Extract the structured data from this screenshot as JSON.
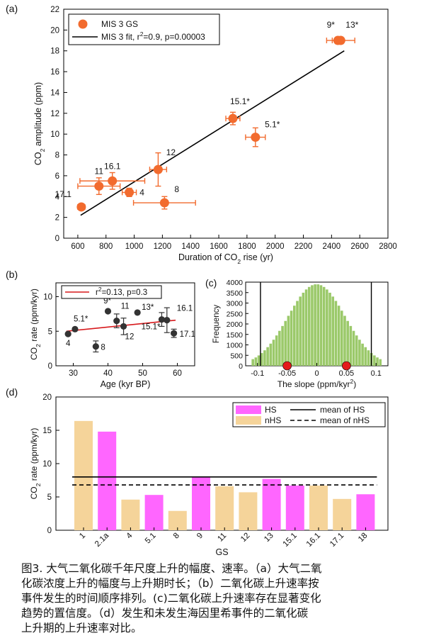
{
  "chart_data": [
    {
      "id": "a",
      "type": "scatter",
      "panel_label": "(a)",
      "xlabel_prefix": "Duration of CO",
      "xlabel_sub": "2",
      "xlabel_suffix": " rise (yr)",
      "ylabel_prefix": "CO",
      "ylabel_sub": "2",
      "ylabel_suffix": " amplitude (ppm)",
      "xlim": [
        500,
        2800
      ],
      "ylim": [
        0,
        22
      ],
      "xticks": [
        600,
        800,
        1000,
        1200,
        1400,
        1600,
        1800,
        2000,
        2200,
        2400,
        2600,
        2800
      ],
      "yticks": [
        0,
        2,
        4,
        6,
        8,
        10,
        12,
        14,
        16,
        18,
        20,
        22
      ],
      "legend": {
        "position": "top-left",
        "marker_label": "MIS 3 GS",
        "line_label_prefix": "MIS 3 fit, r",
        "line_label_sup": "2",
        "line_label_suffix": "=0.9, p=0.00003"
      },
      "colors": {
        "marker": "#f26b2e",
        "errorbar": "#f26b2e",
        "fit": "#000000"
      },
      "points": [
        {
          "label": "17.1",
          "x": 625,
          "y": 3.0,
          "xerr": 25,
          "yerr": 0.3
        },
        {
          "label": "11",
          "x": 750,
          "y": 5.0,
          "xerr": 150,
          "yerr": 0.8
        },
        {
          "label": "16.1",
          "x": 845,
          "y": 5.5,
          "xerr": 230,
          "yerr": 0.8
        },
        {
          "label": "4",
          "x": 965,
          "y": 4.4,
          "xerr": 50,
          "yerr": 0.4
        },
        {
          "label": "12",
          "x": 1170,
          "y": 6.6,
          "xerr": 60,
          "yerr": 1.6
        },
        {
          "label": "8",
          "x": 1215,
          "y": 3.4,
          "xerr": 220,
          "yerr": 0.6
        },
        {
          "label": "15.1*",
          "x": 1700,
          "y": 11.5,
          "xerr": 50,
          "yerr": 0.6
        },
        {
          "label": "5.1*",
          "x": 1860,
          "y": 9.7,
          "xerr": 70,
          "yerr": 0.9
        },
        {
          "label": "9*",
          "x": 2445,
          "y": 19.0,
          "xerr": 40,
          "yerr": 0.3
        },
        {
          "label": "13*",
          "x": 2465,
          "y": 19.0,
          "xerr": 100,
          "yerr": 0.3
        }
      ],
      "fit_line": {
        "x": [
          620,
          2490
        ],
        "y": [
          2.2,
          18.0
        ]
      }
    },
    {
      "id": "b",
      "type": "scatter",
      "panel_label": "(b)",
      "xlabel": "Age (kyr BP)",
      "ylabel_prefix": "CO",
      "ylabel_sub": "2",
      "ylabel_suffix": " rate (ppm/kyr)",
      "xlim": [
        25,
        65
      ],
      "ylim": [
        0,
        12
      ],
      "xticks": [
        30,
        40,
        50,
        60
      ],
      "yticks": [
        0,
        5,
        10
      ],
      "legend": {
        "position": "top",
        "line_label_prefix": "r",
        "line_label_sup": "2",
        "line_label_suffix": "=0.13, p=0.3"
      },
      "colors": {
        "marker": "#333333",
        "fit": "#d7191c"
      },
      "points": [
        {
          "label": "4",
          "x": 28.5,
          "y": 4.6,
          "yerr": 0
        },
        {
          "label": "5.1*",
          "x": 30.5,
          "y": 5.3,
          "yerr": 0
        },
        {
          "label": "8",
          "x": 36.5,
          "y": 2.8,
          "yerr": 0.8
        },
        {
          "label": "9*",
          "x": 40.0,
          "y": 7.9,
          "yerr": 0
        },
        {
          "label": "11",
          "x": 42.5,
          "y": 6.5,
          "yerr": 1.0
        },
        {
          "label": "12",
          "x": 44.5,
          "y": 5.7,
          "yerr": 1.2
        },
        {
          "label": "13*",
          "x": 48.5,
          "y": 7.7,
          "yerr": 0
        },
        {
          "label": "15.1*",
          "x": 55.5,
          "y": 6.7,
          "yerr": 1.0
        },
        {
          "label": "16.1",
          "x": 57.0,
          "y": 6.6,
          "yerr": 1.8
        },
        {
          "label": "17.1",
          "x": 59.0,
          "y": 4.7,
          "yerr": 0.6
        }
      ],
      "fit_line": {
        "x": [
          28,
          59.5
        ],
        "y": [
          5.0,
          6.6
        ]
      }
    },
    {
      "id": "c",
      "type": "bar",
      "panel_label": "(c)",
      "xlabel_prefix": "The slope (ppm/kyr",
      "xlabel_sup": "2",
      "xlabel_suffix": ")",
      "ylabel": "Frequency",
      "xlim": [
        -0.12,
        0.12
      ],
      "ylim": [
        0,
        4000
      ],
      "xticks": [
        -0.1,
        -0.05,
        0,
        0.05,
        0.1
      ],
      "xtick_labels": [
        "-0.1",
        "-0.05",
        "0",
        "0.05",
        "0.1"
      ],
      "yticks": [
        0,
        500,
        1000,
        1500,
        2000,
        2500,
        3000,
        3500,
        4000
      ],
      "histogram": {
        "mean": 0.0,
        "sd": 0.048,
        "peak": 3900,
        "bin_width": 0.005,
        "range": [
          -0.11,
          0.11
        ]
      },
      "vlines": [
        -0.095,
        0.092
      ],
      "red_points": [
        -0.05,
        0.05
      ],
      "colors": {
        "bars": "#9bc96a",
        "vlines": "#000000",
        "points": "#e41a1c"
      }
    },
    {
      "id": "d",
      "type": "bar",
      "panel_label": "(d)",
      "xlabel": "GS",
      "ylabel_prefix": "CO",
      "ylabel_sub": "2",
      "ylabel_suffix": " rate (ppm/kyr)",
      "ylim": [
        0,
        20
      ],
      "yticks": [
        0,
        5,
        10,
        15,
        20
      ],
      "categories": [
        "1",
        "2.1a",
        "4",
        "5.1",
        "8",
        "9",
        "11",
        "12",
        "13",
        "15.1",
        "16.1",
        "17.1",
        "18"
      ],
      "values": [
        16.4,
        14.8,
        4.6,
        5.3,
        2.9,
        8.0,
        6.6,
        5.7,
        7.7,
        6.7,
        6.7,
        4.7,
        5.4
      ],
      "groups": [
        "nHS",
        "HS",
        "nHS",
        "HS",
        "nHS",
        "HS",
        "nHS",
        "nHS",
        "HS",
        "HS",
        "nHS",
        "nHS",
        "HS"
      ],
      "mean_hs": 8.0,
      "mean_nhs": 6.8,
      "legend": {
        "position": "top-right",
        "hs": "HS",
        "nhs": "nHS",
        "mean_hs": "mean of HS",
        "mean_nhs": "mean of nHS"
      },
      "colors": {
        "HS": "#ff66ff",
        "nHS": "#f5d49a"
      }
    }
  ],
  "caption": {
    "lines": [
      "图3. 大气二氧化碳千年尺度上升的幅度、速率。（a）大气二氧",
      "化碳浓度上升的幅度与上升期时长；（b）二氧化碳上升速率按",
      "事件发生的时间顺序排列。(c)二氧化碳上升速率存在显著变化",
      "趋势的置信度。（d）发生和未发生海因里希事件的二氧化碳",
      "上升期的上升速率对比。"
    ]
  }
}
